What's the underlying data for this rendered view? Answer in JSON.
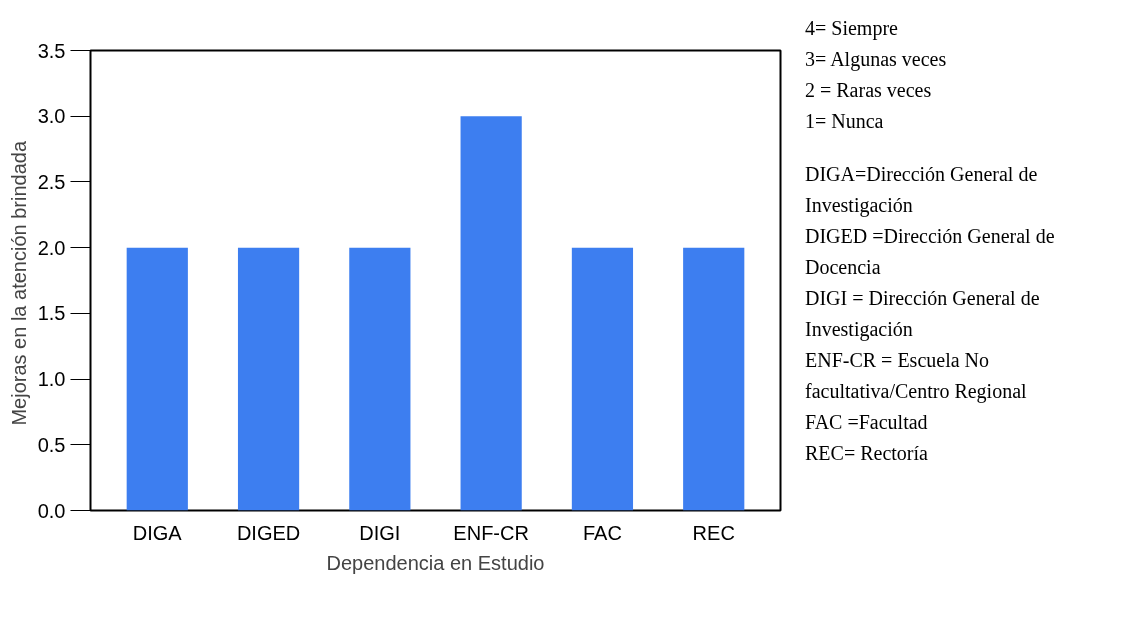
{
  "chart_data": {
    "type": "bar",
    "xlabel": "Dependencia en Estudio",
    "ylabel": "Mejoras en  la atención brindada",
    "categories": [
      "DIGA",
      "DIGED",
      "DIGI",
      "ENF-CR",
      "FAC",
      "REC"
    ],
    "values": [
      2,
      2,
      2,
      3,
      2,
      2
    ],
    "color": "#3d7ef0",
    "ylim": [
      0,
      3.5
    ],
    "yticks": [
      {
        "value": 0,
        "label": "0.0"
      },
      {
        "value": 0.5,
        "label": "0.5"
      },
      {
        "value": 1,
        "label": "1.0"
      },
      {
        "value": 1.5,
        "label": "1.5"
      },
      {
        "value": 2,
        "label": "2.0"
      },
      {
        "value": 2.5,
        "label": "2.5"
      },
      {
        "value": 3,
        "label": "3.0"
      },
      {
        "value": 3.5,
        "label": "3.5"
      }
    ],
    "grid": false,
    "annotations": [
      "4=  Siempre",
      "3=  Algunas veces",
      "2 = Raras veces",
      "1=  Nunca",
      "DIGA=Dirección General de Investigación",
      "DIGED =Dirección General de Docencia",
      "DIGI = Dirección General de Investigación",
      "ENF-CR = Escuela No facultativa/Centro Regional",
      "FAC =Facultad",
      "REC= Rectoría"
    ]
  }
}
